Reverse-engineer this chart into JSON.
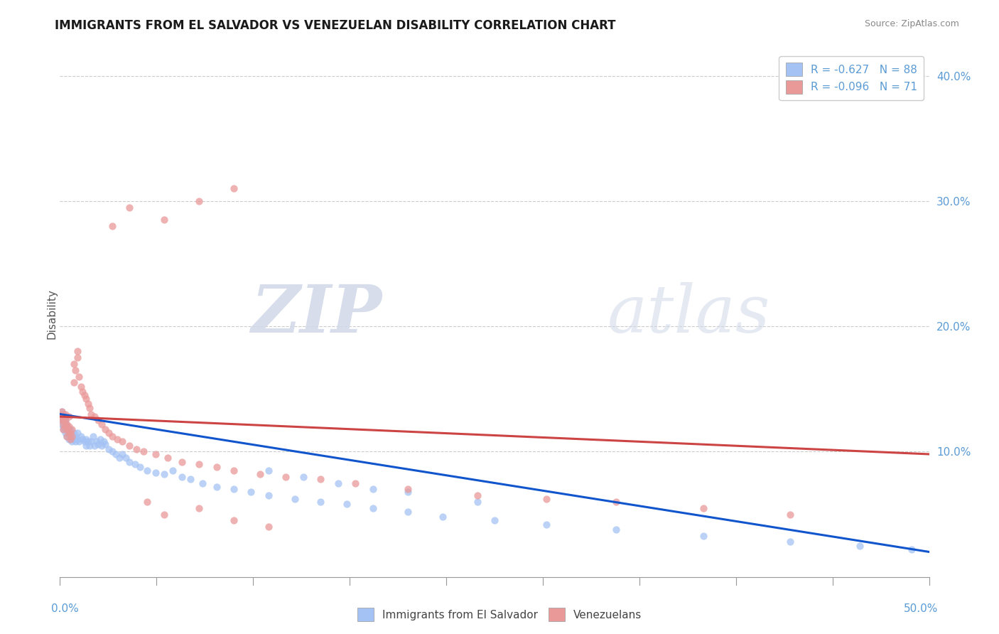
{
  "title": "IMMIGRANTS FROM EL SALVADOR VS VENEZUELAN DISABILITY CORRELATION CHART",
  "source": "Source: ZipAtlas.com",
  "ylabel": "Disability",
  "legend_blue_label": "R = -0.627   N = 88",
  "legend_pink_label": "R = -0.096   N = 71",
  "bottom_legend_blue": "Immigrants from El Salvador",
  "bottom_legend_pink": "Venezuelans",
  "blue_color": "#a4c2f4",
  "pink_color": "#ea9999",
  "blue_line_color": "#1155cc",
  "pink_line_color": "#cc4444",
  "watermark_zip": "ZIP",
  "watermark_atlas": "atlas",
  "xlim": [
    0,
    0.5
  ],
  "ylim": [
    0,
    0.42
  ],
  "ytick_vals": [
    0.1,
    0.2,
    0.3,
    0.4
  ],
  "ytick_labels": [
    "10.0%",
    "20.0%",
    "30.0%",
    "40.0%"
  ],
  "blue_line_x0": 0.0,
  "blue_line_y0": 0.13,
  "blue_line_x1": 0.5,
  "blue_line_y1": 0.02,
  "pink_line_x0": 0.0,
  "pink_line_y0": 0.128,
  "pink_line_x1": 0.5,
  "pink_line_y1": 0.098,
  "blue_scatter_x": [
    0.001,
    0.001,
    0.001,
    0.001,
    0.001,
    0.002,
    0.002,
    0.002,
    0.002,
    0.002,
    0.003,
    0.003,
    0.003,
    0.003,
    0.003,
    0.004,
    0.004,
    0.004,
    0.005,
    0.005,
    0.005,
    0.006,
    0.006,
    0.006,
    0.007,
    0.007,
    0.008,
    0.008,
    0.009,
    0.009,
    0.01,
    0.01,
    0.011,
    0.012,
    0.013,
    0.014,
    0.015,
    0.015,
    0.016,
    0.017,
    0.018,
    0.019,
    0.02,
    0.021,
    0.022,
    0.023,
    0.024,
    0.025,
    0.026,
    0.028,
    0.03,
    0.032,
    0.034,
    0.036,
    0.038,
    0.04,
    0.043,
    0.046,
    0.05,
    0.055,
    0.06,
    0.065,
    0.07,
    0.075,
    0.082,
    0.09,
    0.1,
    0.11,
    0.12,
    0.135,
    0.15,
    0.165,
    0.18,
    0.2,
    0.22,
    0.25,
    0.28,
    0.32,
    0.37,
    0.42,
    0.46,
    0.49,
    0.12,
    0.14,
    0.16,
    0.18,
    0.2,
    0.24
  ],
  "blue_scatter_y": [
    0.128,
    0.13,
    0.125,
    0.132,
    0.122,
    0.127,
    0.13,
    0.12,
    0.125,
    0.118,
    0.125,
    0.12,
    0.128,
    0.115,
    0.122,
    0.118,
    0.112,
    0.12,
    0.115,
    0.118,
    0.11,
    0.115,
    0.112,
    0.118,
    0.112,
    0.108,
    0.11,
    0.115,
    0.108,
    0.112,
    0.11,
    0.115,
    0.108,
    0.112,
    0.11,
    0.108,
    0.105,
    0.11,
    0.108,
    0.105,
    0.108,
    0.112,
    0.105,
    0.108,
    0.106,
    0.11,
    0.105,
    0.108,
    0.106,
    0.102,
    0.1,
    0.098,
    0.095,
    0.098,
    0.095,
    0.092,
    0.09,
    0.088,
    0.085,
    0.083,
    0.082,
    0.085,
    0.08,
    0.078,
    0.075,
    0.072,
    0.07,
    0.068,
    0.065,
    0.062,
    0.06,
    0.058,
    0.055,
    0.052,
    0.048,
    0.045,
    0.042,
    0.038,
    0.033,
    0.028,
    0.025,
    0.022,
    0.085,
    0.08,
    0.075,
    0.07,
    0.068,
    0.06
  ],
  "pink_scatter_x": [
    0.001,
    0.001,
    0.001,
    0.001,
    0.002,
    0.002,
    0.002,
    0.002,
    0.003,
    0.003,
    0.003,
    0.004,
    0.004,
    0.004,
    0.005,
    0.005,
    0.005,
    0.006,
    0.006,
    0.007,
    0.007,
    0.008,
    0.008,
    0.009,
    0.01,
    0.01,
    0.011,
    0.012,
    0.013,
    0.014,
    0.015,
    0.016,
    0.017,
    0.018,
    0.02,
    0.022,
    0.024,
    0.026,
    0.028,
    0.03,
    0.033,
    0.036,
    0.04,
    0.044,
    0.048,
    0.055,
    0.062,
    0.07,
    0.08,
    0.09,
    0.1,
    0.115,
    0.13,
    0.15,
    0.17,
    0.2,
    0.24,
    0.28,
    0.32,
    0.37,
    0.42,
    0.05,
    0.06,
    0.08,
    0.1,
    0.12,
    0.03,
    0.04,
    0.06,
    0.08,
    0.1
  ],
  "pink_scatter_y": [
    0.13,
    0.132,
    0.125,
    0.128,
    0.122,
    0.125,
    0.128,
    0.118,
    0.13,
    0.12,
    0.125,
    0.118,
    0.122,
    0.112,
    0.12,
    0.115,
    0.128,
    0.115,
    0.11,
    0.118,
    0.112,
    0.17,
    0.155,
    0.165,
    0.18,
    0.175,
    0.16,
    0.152,
    0.148,
    0.145,
    0.142,
    0.138,
    0.135,
    0.13,
    0.128,
    0.125,
    0.122,
    0.118,
    0.115,
    0.112,
    0.11,
    0.108,
    0.105,
    0.102,
    0.1,
    0.098,
    0.095,
    0.092,
    0.09,
    0.088,
    0.085,
    0.082,
    0.08,
    0.078,
    0.075,
    0.07,
    0.065,
    0.062,
    0.06,
    0.055,
    0.05,
    0.06,
    0.05,
    0.055,
    0.045,
    0.04,
    0.28,
    0.295,
    0.285,
    0.3,
    0.31
  ]
}
